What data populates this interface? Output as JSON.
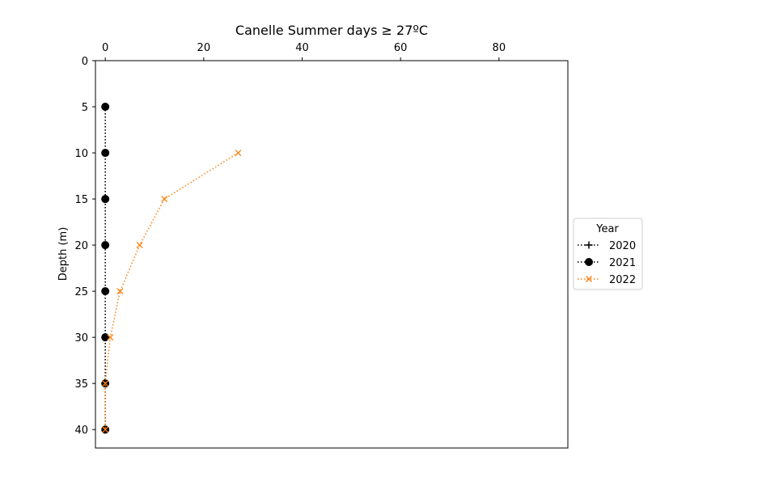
{
  "chart_data": {
    "type": "line",
    "title": "Canelle Summer days ≥ 27ºC",
    "xlabel": "",
    "ylabel": "Depth (m)",
    "xlim": [
      -2,
      94
    ],
    "ylim": [
      42,
      0
    ],
    "x_axis_position": "top",
    "y_inverted": true,
    "xticks": [
      "0",
      "20",
      "40",
      "60",
      "80"
    ],
    "yticks": [
      "0",
      "5",
      "10",
      "15",
      "20",
      "25",
      "30",
      "35",
      "40"
    ],
    "grid": false,
    "legend": {
      "title": "Year",
      "placement": "outside-right"
    },
    "series": [
      {
        "name": "2020",
        "color": "#000000",
        "marker": "plus",
        "linestyle": "dotted",
        "points": [
          [
            0,
            5
          ],
          [
            0,
            10
          ],
          [
            0,
            15
          ],
          [
            0,
            20
          ],
          [
            0,
            25
          ],
          [
            0,
            30
          ],
          [
            0,
            35
          ],
          [
            0,
            40
          ]
        ]
      },
      {
        "name": "2021",
        "color": "#000000",
        "marker": "circle",
        "linestyle": "dotted",
        "points": [
          [
            0,
            5
          ],
          [
            0,
            10
          ],
          [
            0,
            15
          ],
          [
            0,
            20
          ],
          [
            0,
            25
          ],
          [
            0,
            30
          ],
          [
            0,
            35
          ],
          [
            0,
            40
          ]
        ]
      },
      {
        "name": "2022",
        "color": "#ff7f0e",
        "marker": "x",
        "linestyle": "dotted",
        "points": [
          [
            27,
            10
          ],
          [
            12,
            15
          ],
          [
            7,
            20
          ],
          [
            3,
            25
          ],
          [
            1,
            30
          ],
          [
            0,
            35
          ],
          [
            0,
            40
          ]
        ]
      }
    ]
  }
}
